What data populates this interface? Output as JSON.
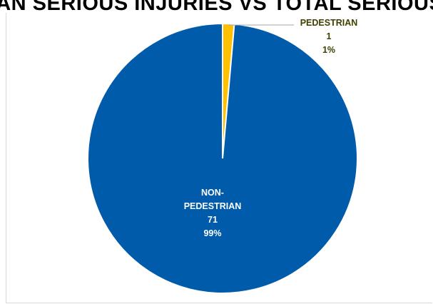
{
  "chart_data": {
    "type": "pie",
    "title": "…IAN SERIOUS INJURIES VS TOTAL SERIOUS…",
    "slices": [
      {
        "name": "PEDESTRIAN",
        "value": 1,
        "percent": "1%",
        "color": "#ffc000",
        "label_color": "#3f3f00"
      },
      {
        "name": "NON-PEDESTRIAN",
        "value": 71,
        "percent": "99%",
        "color": "#005bab",
        "label_color": "#ffffff"
      }
    ],
    "start_angle_deg": 0,
    "direction": "clockwise"
  }
}
